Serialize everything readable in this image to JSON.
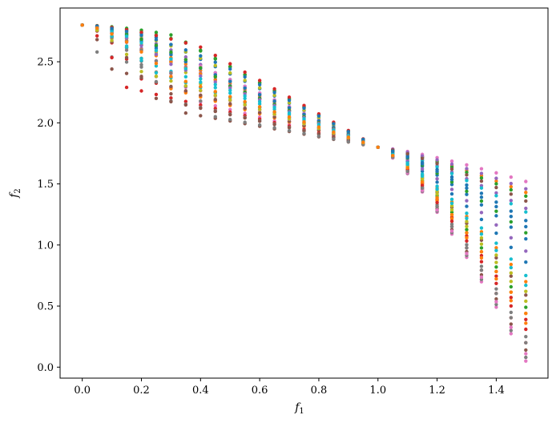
{
  "chart_data": {
    "type": "scatter",
    "title": "",
    "xlabel": "f",
    "xlabel_sub": "1",
    "ylabel": "f",
    "ylabel_sub": "2",
    "xlim": [
      -0.075,
      1.575
    ],
    "ylim": [
      -0.09,
      2.94
    ],
    "xticks": [
      0.0,
      0.2,
      0.4,
      0.6,
      0.8,
      1.0,
      1.2,
      1.4
    ],
    "xtick_labels": [
      "0.0",
      "0.2",
      "0.4",
      "0.6",
      "0.8",
      "1.0",
      "1.2",
      "1.4"
    ],
    "yticks": [
      0.0,
      0.5,
      1.0,
      1.5,
      2.0,
      2.5
    ],
    "ytick_labels": [
      "0.0",
      "0.5",
      "1.0",
      "1.5",
      "2.0",
      "2.5"
    ],
    "grid": false,
    "legend": "none",
    "x_step": 0.05,
    "series": [
      {
        "color": "#1f77b4",
        "anchor": [
          0.25,
          2.61
        ],
        "end": 0.86
      },
      {
        "color": "#ff7f0e",
        "anchor": [
          0.15,
          2.69
        ],
        "end": 0.7
      },
      {
        "color": "#2ca02c",
        "anchor": [
          0.3,
          2.72
        ],
        "end": 0.49
      },
      {
        "color": "#d62728",
        "anchor": [
          0.2,
          2.36
        ],
        "end": 0.39
      },
      {
        "color": "#9467bd",
        "anchor": [
          0.1,
          2.71
        ],
        "end": 1.3
      },
      {
        "color": "#8c564b",
        "anchor": [
          0.35,
          2.08
        ],
        "end": 0.14
      },
      {
        "color": "#e377c2",
        "anchor": [
          0.4,
          2.17
        ],
        "end": 0.05
      },
      {
        "color": "#7f7f7f",
        "anchor": [
          0.05,
          2.58
        ],
        "end": 0.08
      },
      {
        "color": "#bcbd22",
        "anchor": [
          0.45,
          2.22
        ],
        "end": 0.44
      },
      {
        "color": "#17becf",
        "anchor": [
          0.2,
          2.51
        ],
        "end": 1.27
      },
      {
        "color": "#1f77b4",
        "anchor": [
          0.25,
          2.7
        ],
        "end": 1.05
      },
      {
        "color": "#ff7f0e",
        "anchor": [
          0.3,
          2.28
        ],
        "end": 1.43
      },
      {
        "color": "#2ca02c",
        "anchor": [
          0.35,
          2.66
        ],
        "end": 1.4
      },
      {
        "color": "#d62728",
        "anchor": [
          0.15,
          2.29
        ],
        "end": 0.2
      },
      {
        "color": "#9467bd",
        "anchor": [
          0.45,
          2.41
        ],
        "end": 0.95
      },
      {
        "color": "#8c564b",
        "anchor": [
          0.1,
          2.44
        ],
        "end": 0.59
      },
      {
        "color": "#e377c2",
        "anchor": [
          0.15,
          2.74
        ],
        "end": 1.52
      },
      {
        "color": "#7f7f7f",
        "anchor": [
          0.3,
          2.18
        ],
        "end": 0.25
      },
      {
        "color": "#bcbd22",
        "anchor": [
          0.4,
          2.53
        ],
        "end": 0.62
      },
      {
        "color": "#17becf",
        "anchor": [
          0.25,
          2.41
        ],
        "end": 0.75
      },
      {
        "color": "#1f77b4",
        "anchor": [
          0.35,
          2.5
        ],
        "end": 1.2
      },
      {
        "color": "#ff7f0e",
        "anchor": [
          0.2,
          2.6
        ],
        "end": 0.36
      },
      {
        "color": "#2ca02c",
        "anchor": [
          0.5,
          2.3
        ],
        "end": 1.1
      },
      {
        "color": "#d62728",
        "anchor": [
          0.4,
          2.62
        ],
        "end": 0.31
      },
      {
        "color": "#9467bd",
        "anchor": [
          0.3,
          2.48
        ],
        "end": 1.46
      },
      {
        "color": "#8c564b",
        "anchor": [
          0.25,
          2.2
        ],
        "end": 1.36
      },
      {
        "color": "#e377c2",
        "anchor": [
          0.35,
          2.3
        ],
        "end": 0.11
      },
      {
        "color": "#7f7f7f",
        "anchor": [
          0.45,
          2.05
        ],
        "end": 0.2
      },
      {
        "color": "#bcbd22",
        "anchor": [
          0.2,
          2.42
        ],
        "end": 0.54
      },
      {
        "color": "#17becf",
        "anchor": [
          0.4,
          2.36
        ],
        "end": 0.67
      },
      {
        "color": "#1f77b4",
        "anchor": [
          0.5,
          2.44
        ],
        "end": 1.15
      },
      {
        "color": "#ff7f0e",
        "anchor": [
          0.3,
          2.38
        ],
        "end": 0.44
      }
    ]
  }
}
